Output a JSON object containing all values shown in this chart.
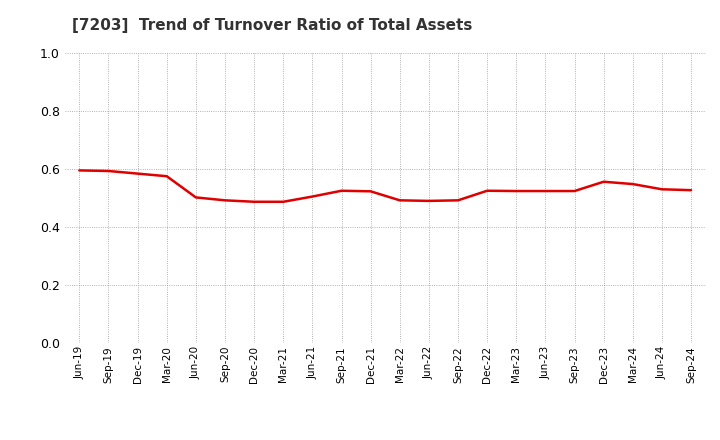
{
  "title": "[7203]  Trend of Turnover Ratio of Total Assets",
  "title_color": "#333333",
  "line_color": "#e00000",
  "line_width": 1.8,
  "background_color": "#ffffff",
  "grid_color": "#999999",
  "ylim": [
    0.0,
    1.0
  ],
  "yticks": [
    0.0,
    0.2,
    0.4,
    0.6,
    0.8,
    1.0
  ],
  "x_labels": [
    "Jun-19",
    "Sep-19",
    "Dec-19",
    "Mar-20",
    "Jun-20",
    "Sep-20",
    "Dec-20",
    "Mar-21",
    "Jun-21",
    "Sep-21",
    "Dec-21",
    "Mar-22",
    "Jun-22",
    "Sep-22",
    "Dec-22",
    "Mar-23",
    "Jun-23",
    "Sep-23",
    "Dec-23",
    "Mar-24",
    "Jun-24",
    "Sep-24"
  ],
  "values": [
    0.595,
    0.593,
    0.584,
    0.575,
    0.502,
    0.492,
    0.487,
    0.487,
    0.505,
    0.525,
    0.523,
    0.492,
    0.49,
    0.492,
    0.525,
    0.524,
    0.524,
    0.524,
    0.556,
    0.548,
    0.53,
    0.527
  ]
}
